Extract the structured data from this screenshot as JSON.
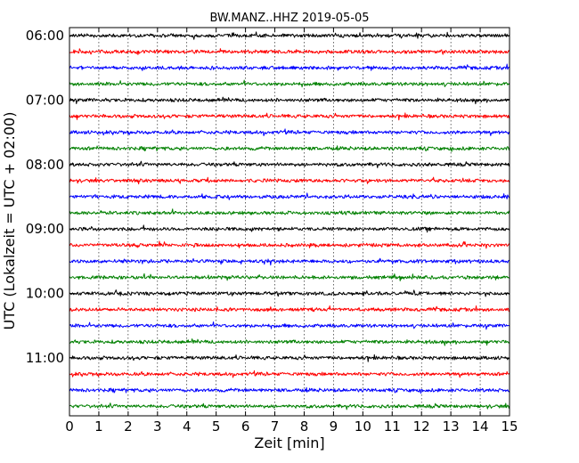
{
  "chart_data": {
    "type": "line",
    "title": "BW.MANZ..HHZ 2019-05-05",
    "xlabel": "Zeit  [min]",
    "ylabel": "UTC (Lokalzeit = UTC + 02:00)",
    "xlim": [
      0,
      15
    ],
    "x_ticks": [
      "0",
      "1",
      "2",
      "3",
      "4",
      "5",
      "6",
      "7",
      "8",
      "9",
      "10",
      "11",
      "12",
      "13",
      "14",
      "15"
    ],
    "y_tick_labels": [
      "06:00",
      "07:00",
      "08:00",
      "09:00",
      "10:00",
      "11:00"
    ],
    "grid": "vertical dotted",
    "trace_colors": [
      "#000000",
      "#ff0000",
      "#0000ff",
      "#008000"
    ],
    "trace_count": 24,
    "trace_start_times": [
      "06:00",
      "06:15",
      "06:30",
      "06:45",
      "07:00",
      "07:15",
      "07:30",
      "07:45",
      "08:00",
      "08:15",
      "08:30",
      "08:45",
      "09:00",
      "09:15",
      "09:30",
      "09:45",
      "10:00",
      "10:15",
      "10:30",
      "10:45",
      "11:00",
      "11:15",
      "11:30",
      "11:45"
    ],
    "traces_per_hour": 4,
    "minutes_per_trace": 15
  }
}
